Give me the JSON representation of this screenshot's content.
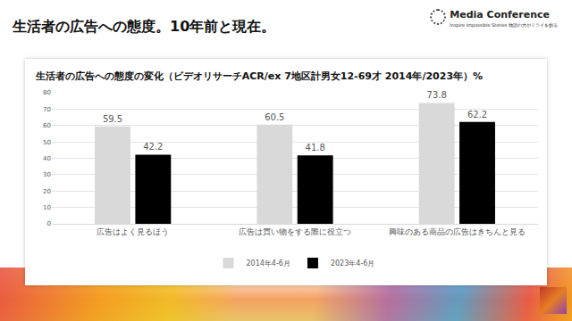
{
  "header": {
    "title": "生活者の広告への態度。10年前と現在。",
    "logo_title": "Media Conference",
    "logo_subtitle": "Inspire Impossible Stories 物語の力がミライを創る"
  },
  "chart_data": {
    "type": "bar",
    "title": "生活者の広告への態度の変化（ビデオリサーチACR/ex 7地区計男女12-69才 2014年/2023年）%",
    "categories": [
      "広告はよく見るほう",
      "広告は買い物をする際に役立つ",
      "興味のある商品の広告はきちんと見る"
    ],
    "series": [
      {
        "name": "2014年4-6月",
        "color": "#d9d9d9",
        "values": [
          59.5,
          60.5,
          73.8
        ]
      },
      {
        "name": "2023年4-6月",
        "color": "#000000",
        "values": [
          42.2,
          41.8,
          62.2
        ]
      }
    ],
    "ylim": [
      0,
      80
    ],
    "yticks": [
      0,
      10,
      20,
      30,
      40,
      50,
      60,
      70,
      80
    ],
    "grid": true,
    "legend": "bottom",
    "data_labels": true
  }
}
